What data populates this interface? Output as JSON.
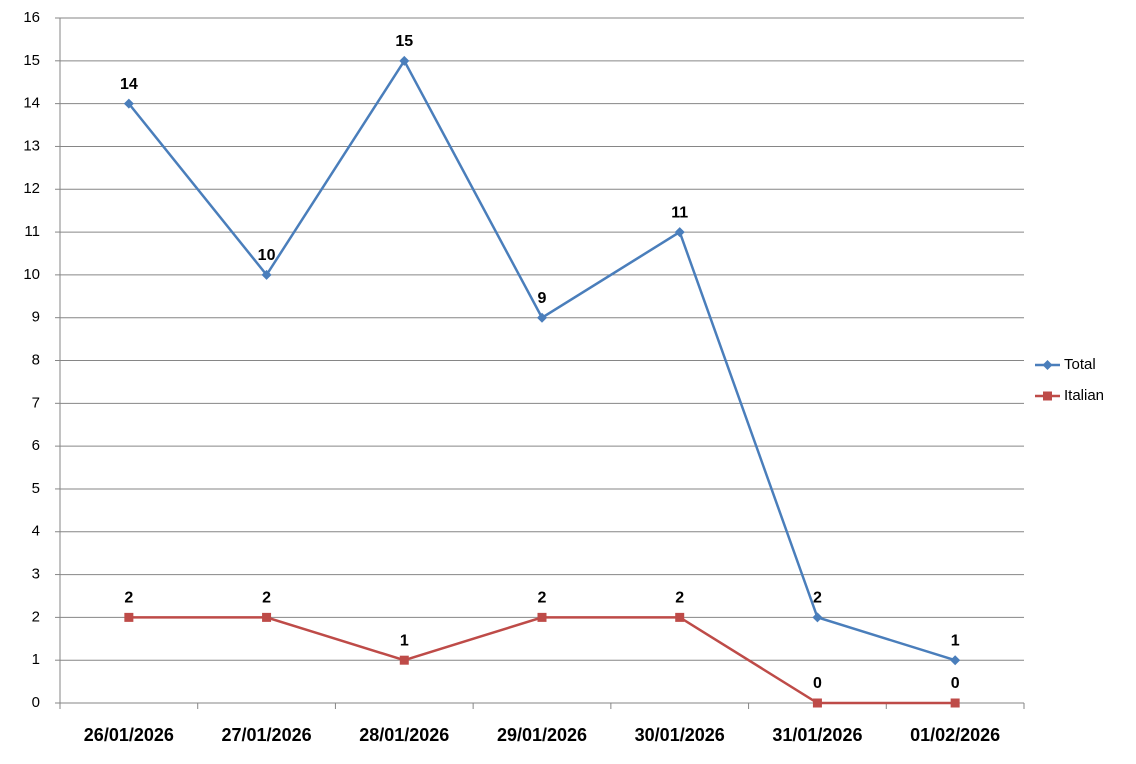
{
  "chart_data": {
    "type": "line",
    "categories": [
      "26/01/2026",
      "27/01/2026",
      "28/01/2026",
      "29/01/2026",
      "30/01/2026",
      "31/01/2026",
      "01/02/2026"
    ],
    "series": [
      {
        "name": "Total",
        "color": "#4a7ebb",
        "marker": "diamond",
        "values": [
          14,
          10,
          15,
          9,
          11,
          2,
          1
        ]
      },
      {
        "name": "Italian",
        "color": "#be4b48",
        "marker": "square",
        "values": [
          2,
          2,
          1,
          2,
          2,
          0,
          0
        ]
      }
    ],
    "ylim": [
      0,
      16
    ],
    "yticks": [
      0,
      1,
      2,
      3,
      4,
      5,
      6,
      7,
      8,
      9,
      10,
      11,
      12,
      13,
      14,
      15,
      16
    ],
    "grid": true,
    "legend": "right",
    "data_labels": true
  }
}
